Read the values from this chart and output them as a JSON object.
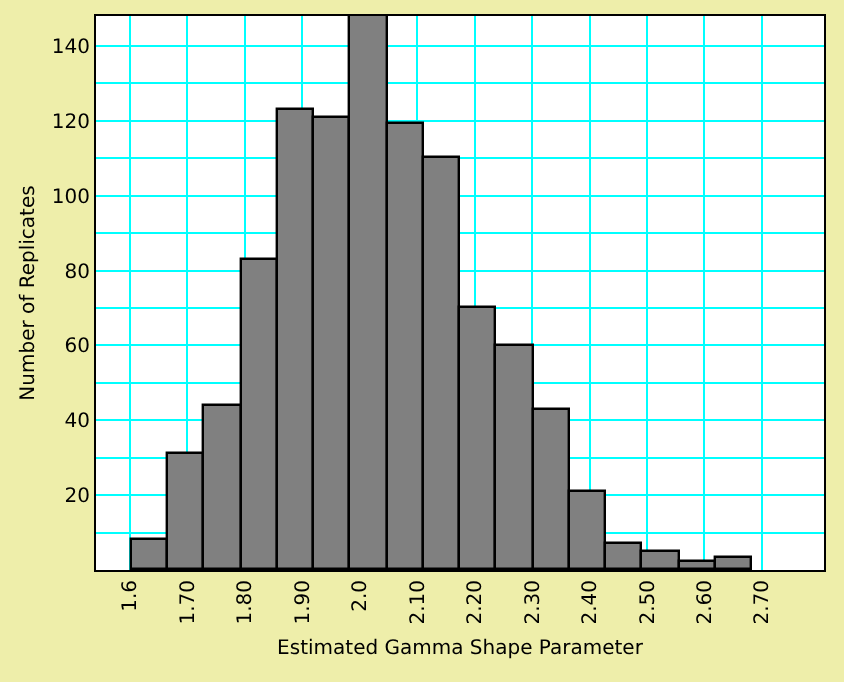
{
  "chart_data": {
    "type": "histogram",
    "xlabel": "Estimated Gamma Shape Parameter",
    "ylabel": "Number of Replicates",
    "bins": [
      1.603,
      1.667,
      1.73,
      1.794,
      1.857,
      1.921,
      1.984,
      2.048,
      2.111,
      2.175,
      2.238,
      2.302,
      2.365,
      2.429,
      2.492,
      2.556,
      2.619,
      2.683
    ],
    "values": [
      8,
      31,
      44,
      83,
      123,
      121,
      148,
      119,
      110,
      70,
      60,
      43,
      21,
      7,
      5,
      2,
      3
    ],
    "color": "#808080",
    "xlim": [
      1.541,
      2.808
    ],
    "xticks": [
      1.6,
      {
        "value": 1.7,
        "label": "1.70"
      },
      {
        "value": 1.8,
        "label": "1.80"
      },
      {
        "value": 1.9,
        "label": "1.90"
      },
      {
        "value": 2.0,
        "label": "2.0"
      },
      {
        "value": 2.1,
        "label": "2.10"
      },
      {
        "value": 2.2,
        "label": "2.20"
      },
      {
        "value": 2.3,
        "label": "2.30"
      },
      {
        "value": 2.4,
        "label": "2.40"
      },
      {
        "value": 2.5,
        "label": "2.50"
      },
      {
        "value": 2.6,
        "label": "2.60"
      },
      {
        "value": 2.7,
        "label": "2.70"
      }
    ],
    "ylim": [
      0,
      148
    ],
    "yticks": [
      {
        "value": 10,
        "label": null
      },
      20,
      {
        "value": 30,
        "label": null
      },
      40,
      {
        "value": 50,
        "label": null
      },
      60,
      {
        "value": 70,
        "label": null
      },
      80,
      {
        "value": 90,
        "label": null
      },
      100,
      {
        "value": 110,
        "label": null
      },
      120,
      {
        "value": 130,
        "label": null
      },
      140
    ],
    "grid": true
  }
}
